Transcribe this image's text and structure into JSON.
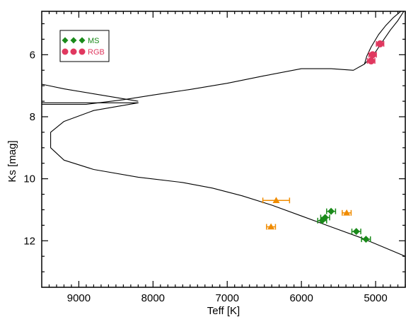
{
  "chart_data": {
    "type": "scatter",
    "xlabel": "Teff [K]",
    "ylabel": "Ks [mag]",
    "xlim": [
      9500,
      4600
    ],
    "ylim": [
      13.5,
      4.6
    ],
    "x_ticks": [
      9000,
      8000,
      7000,
      6000,
      5000
    ],
    "y_ticks": [
      6,
      8,
      10,
      12
    ],
    "x_tick_labels": [
      "9000",
      "8000",
      "7000",
      "6000",
      "5000"
    ],
    "y_tick_labels": [
      "6",
      "8",
      "10",
      "12"
    ],
    "legend": {
      "placement": "top-left",
      "entries": [
        {
          "label": "MS",
          "marker": "diamond",
          "color": "#1a8a1a"
        },
        {
          "label": "RGB",
          "marker": "circle",
          "color": "#e0385f"
        }
      ]
    },
    "isochrone": {
      "color": "#000000",
      "upper_branch": [
        [
          8200,
          7.5
        ],
        [
          8700,
          7.3
        ],
        [
          9200,
          7.1
        ],
        [
          9500,
          6.95
        ]
      ],
      "main_curve": [
        [
          9500,
          7.55
        ],
        [
          8200,
          7.55
        ],
        [
          8800,
          7.8
        ],
        [
          9200,
          8.15
        ],
        [
          9380,
          8.5
        ],
        [
          9380,
          9.0
        ],
        [
          9200,
          9.4
        ],
        [
          8800,
          9.7
        ],
        [
          8200,
          9.95
        ],
        [
          7600,
          10.12
        ],
        [
          7200,
          10.3
        ],
        [
          6800,
          10.55
        ],
        [
          6400,
          10.85
        ],
        [
          6000,
          11.2
        ],
        [
          5600,
          11.55
        ],
        [
          5200,
          11.9
        ],
        [
          4900,
          12.2
        ],
        [
          4600,
          12.5
        ]
      ],
      "base_line": [
        [
          9500,
          7.6
        ],
        [
          8900,
          7.6
        ],
        [
          8400,
          7.45
        ],
        [
          8000,
          7.3
        ],
        [
          7500,
          7.12
        ],
        [
          7000,
          6.92
        ],
        [
          6500,
          6.68
        ],
        [
          6000,
          6.45
        ],
        [
          5600,
          6.45
        ],
        [
          5300,
          6.5
        ],
        [
          5150,
          6.3
        ],
        [
          5020,
          5.98
        ],
        [
          4900,
          5.55
        ],
        [
          4800,
          5.2
        ],
        [
          4700,
          4.9
        ],
        [
          4620,
          4.6
        ]
      ],
      "turnoff_loop": [
        [
          5150,
          6.3
        ],
        [
          5120,
          6.05
        ],
        [
          5060,
          5.75
        ],
        [
          4960,
          5.35
        ],
        [
          4860,
          5.05
        ],
        [
          4760,
          4.8
        ],
        [
          4660,
          4.6
        ]
      ]
    },
    "series": [
      {
        "name": "MS",
        "marker": "diamond",
        "color": "#1a8a1a",
        "points": [
          {
            "x": 5600,
            "y": 11.05,
            "xerr": 60
          },
          {
            "x": 5680,
            "y": 11.25,
            "xerr": 60
          },
          {
            "x": 5720,
            "y": 11.35,
            "xerr": 60
          },
          {
            "x": 5260,
            "y": 11.7,
            "xerr": 60
          },
          {
            "x": 5130,
            "y": 11.95,
            "xerr": 60
          }
        ]
      },
      {
        "name": "RGB",
        "marker": "circle",
        "color": "#e0385f",
        "points": [
          {
            "x": 4940,
            "y": 5.65,
            "xerr": 50
          },
          {
            "x": 5040,
            "y": 6.0,
            "xerr": 50
          },
          {
            "x": 5060,
            "y": 6.2,
            "xerr": 50
          }
        ]
      },
      {
        "marker": "triangle",
        "color": "#f08c00",
        "points": [
          {
            "x": 6340,
            "y": 10.7,
            "xerr": 180
          },
          {
            "x": 5390,
            "y": 11.1,
            "xerr": 60
          },
          {
            "x": 6410,
            "y": 11.55,
            "xerr": 60
          }
        ]
      }
    ]
  }
}
